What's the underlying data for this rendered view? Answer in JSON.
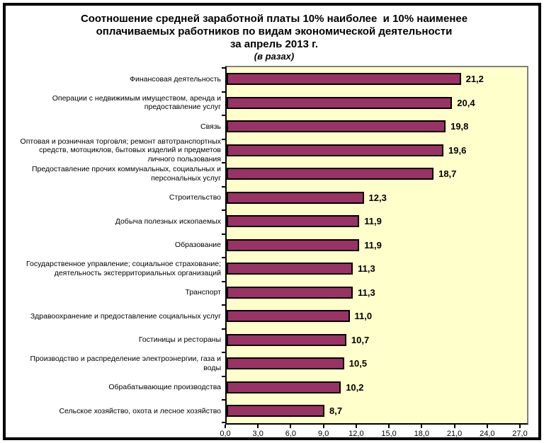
{
  "frame": {
    "background": "#ffffff",
    "border_color": "#000000"
  },
  "title": {
    "line1": "Соотношение средней заработной платы 10% наиболее  и 10% наименее",
    "line2": "оплачиваемых работников по видам экономической деятельности",
    "line3": "за апрель 2013 г.",
    "subtitle": "(в разах)"
  },
  "chart_data": {
    "type": "bar",
    "orientation": "horizontal",
    "title": "Соотношение средней заработной платы 10% наиболее и 10% наименее оплачиваемых работников по видам экономической деятельности за апрель 2013 г. (в разах)",
    "categories": [
      "Финансовая деятельность",
      "Операции с недвижимым имуществом, аренда и предоставление услуг",
      "Связь",
      "Оптовая и розничная торговля; ремонт автотранспортных средств, мотоциклов, бытовых изделий и предметов личного пользования",
      "Предоставление прочих коммунальных, социальных и персональных услуг",
      "Строительство",
      "Добыча полезных ископаемых",
      "Образование",
      "Государственное управление; социальное страхование; деятельность экстерриториальных организаций",
      "Транспорт",
      "Здравоохранение и предоставление социальных услуг",
      "Гостиницы и рестораны",
      "Производство и распределение электроэнергии, газа и воды",
      "Обрабатывающие производства",
      "Сельское хозяйство, охота  и лесное хозяйство"
    ],
    "values": [
      21.2,
      20.4,
      19.8,
      19.6,
      18.7,
      12.3,
      11.9,
      11.9,
      11.3,
      11.3,
      11.0,
      10.7,
      10.5,
      10.2,
      8.7
    ],
    "value_labels": [
      "21,2",
      "20,4",
      "19,8",
      "19,6",
      "18,7",
      "12,3",
      "11,9",
      "11,9",
      "11,3",
      "11,3",
      "11,0",
      "10,7",
      "10,5",
      "10,2",
      "8,7"
    ],
    "xticks": [
      "0,0",
      "3,0",
      "6,0",
      "9,0",
      "12,0",
      "15,0",
      "18,0",
      "21,0",
      "24,0",
      "27,0"
    ],
    "xlim": [
      0,
      27
    ],
    "grid": false,
    "legend": false,
    "bar_color": "#993366",
    "bar_border_color": "#000000",
    "plot_bg": "#ffffcc",
    "plot_border_color": "#808080",
    "axis_color": "#000000",
    "text_color": "#000000"
  }
}
